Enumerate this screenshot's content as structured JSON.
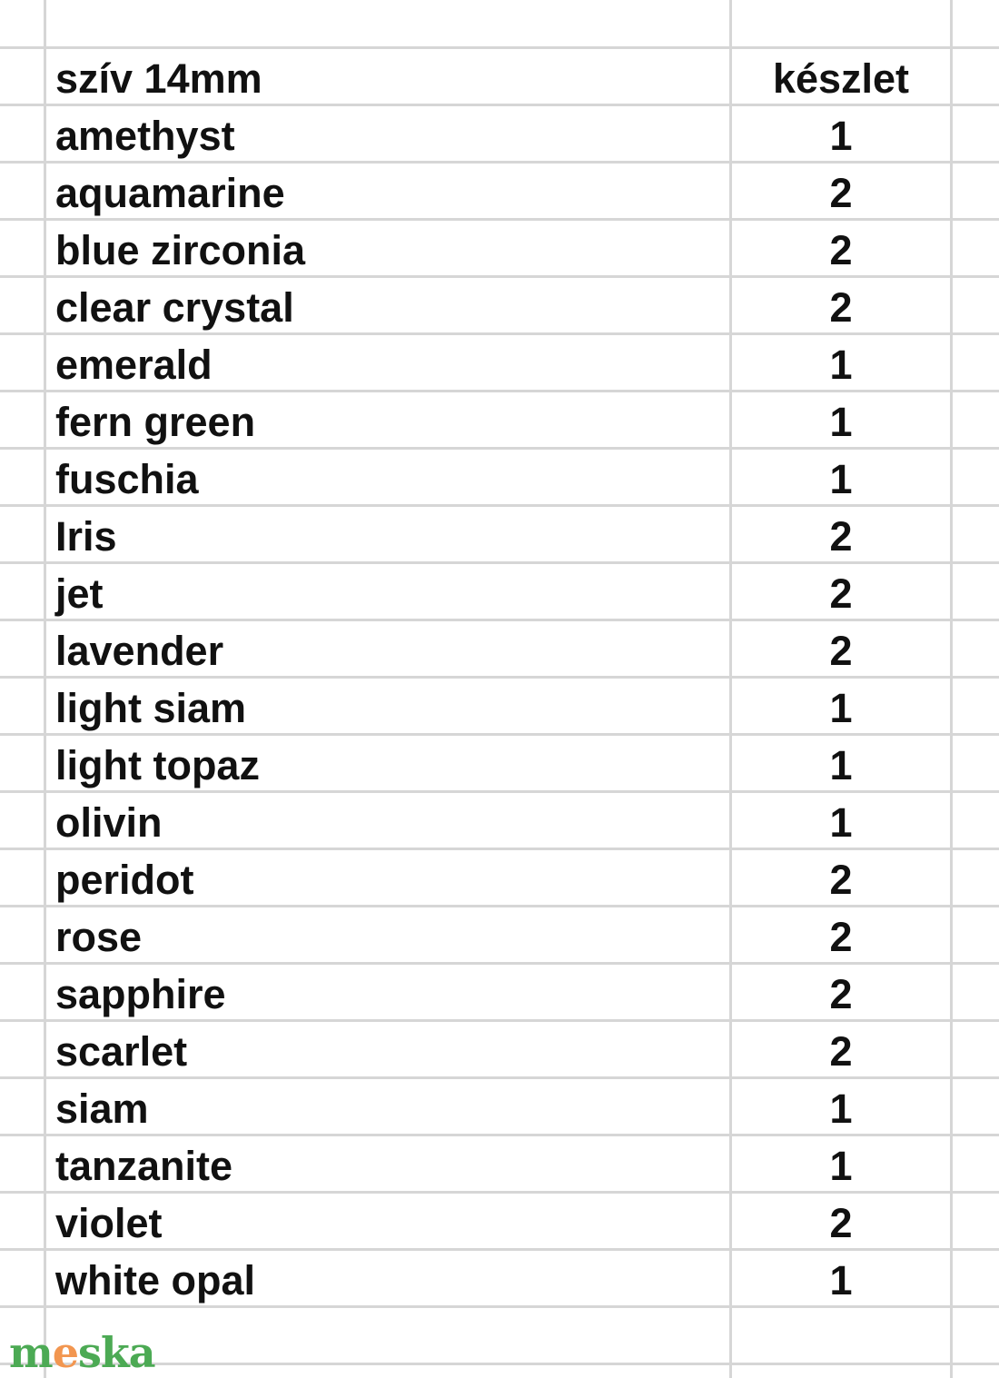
{
  "header": {
    "name": "szív 14mm",
    "qty": "készlet"
  },
  "rows": [
    {
      "name": "amethyst",
      "qty": "1"
    },
    {
      "name": "aquamarine",
      "qty": "2"
    },
    {
      "name": "blue zirconia",
      "qty": "2"
    },
    {
      "name": "clear crystal",
      "qty": "2"
    },
    {
      "name": "emerald",
      "qty": "1"
    },
    {
      "name": "fern green",
      "qty": "1"
    },
    {
      "name": "fuschia",
      "qty": "1"
    },
    {
      "name": "Iris",
      "qty": "2"
    },
    {
      "name": "jet",
      "qty": "2"
    },
    {
      "name": "lavender",
      "qty": "2"
    },
    {
      "name": "light siam",
      "qty": "1"
    },
    {
      "name": "light topaz",
      "qty": "1"
    },
    {
      "name": "olivin",
      "qty": "1"
    },
    {
      "name": "peridot",
      "qty": "2"
    },
    {
      "name": "rose",
      "qty": "2"
    },
    {
      "name": "sapphire",
      "qty": "2"
    },
    {
      "name": "scarlet",
      "qty": "2"
    },
    {
      "name": "siam",
      "qty": "1"
    },
    {
      "name": "tanzanite",
      "qty": "1"
    },
    {
      "name": "violet",
      "qty": "2"
    },
    {
      "name": "white opal",
      "qty": "1"
    }
  ],
  "watermark": {
    "text": "meska",
    "colors": {
      "green": "#4caa54",
      "orange": "#f29650"
    }
  }
}
